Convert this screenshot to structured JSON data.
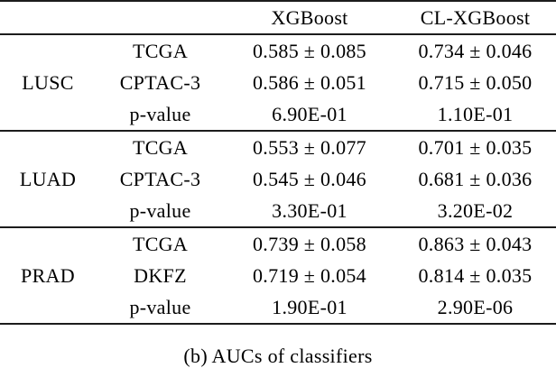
{
  "colors": {
    "background": "#ffffff",
    "text": "#000000",
    "rule": "#1c1c1c"
  },
  "table": {
    "headers": [
      "",
      "",
      "XGBoost",
      "CL-XGBoost"
    ],
    "groups": [
      {
        "label": "LUSC",
        "rows": [
          {
            "dataset": "TCGA",
            "xgboost": "0.585 ± 0.085",
            "cl_xgboost": "0.734 ± 0.046"
          },
          {
            "dataset": "CPTAC-3",
            "xgboost": "0.586 ± 0.051",
            "cl_xgboost": "0.715 ± 0.050"
          },
          {
            "dataset": "p-value",
            "xgboost": "6.90E-01",
            "cl_xgboost": "1.10E-01"
          }
        ]
      },
      {
        "label": "LUAD",
        "rows": [
          {
            "dataset": "TCGA",
            "xgboost": "0.553 ± 0.077",
            "cl_xgboost": "0.701 ± 0.035"
          },
          {
            "dataset": "CPTAC-3",
            "xgboost": "0.545 ± 0.046",
            "cl_xgboost": "0.681 ± 0.036"
          },
          {
            "dataset": "p-value",
            "xgboost": "3.30E-01",
            "cl_xgboost": "3.20E-02"
          }
        ]
      },
      {
        "label": "PRAD",
        "rows": [
          {
            "dataset": "TCGA",
            "xgboost": "0.739 ± 0.058",
            "cl_xgboost": "0.863 ± 0.043"
          },
          {
            "dataset": "DKFZ",
            "xgboost": "0.719 ± 0.054",
            "cl_xgboost": "0.814 ± 0.035"
          },
          {
            "dataset": "p-value",
            "xgboost": "1.90E-01",
            "cl_xgboost": "2.90E-06"
          }
        ]
      }
    ]
  },
  "caption": "(b) AUCs of classifiers"
}
